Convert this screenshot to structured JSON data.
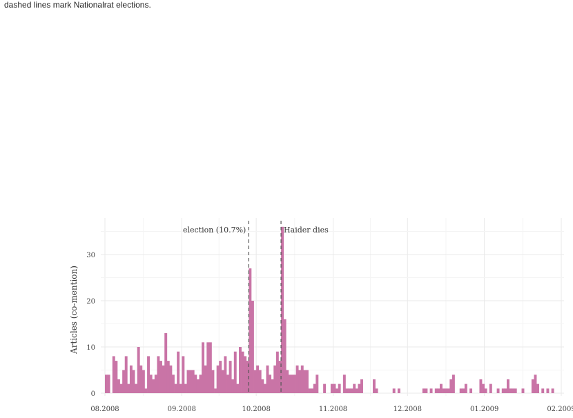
{
  "caption": "dashed lines mark Nationalrat elections.",
  "chart_data": {
    "type": "bar",
    "title": "",
    "xlabel": "",
    "ylabel": "Articles (co-mention)",
    "x_start": "2008-08-01",
    "x_end": "2009-02-01",
    "ylim": [
      0,
      38
    ],
    "grid": true,
    "bar_color": "#c974a6",
    "y_ticks": [
      0,
      10,
      20,
      30
    ],
    "x_ticks": [
      {
        "date": "2008-08-01",
        "label": "08.2008"
      },
      {
        "date": "2008-09-01",
        "label": "09.2008"
      },
      {
        "date": "2008-10-01",
        "label": "10.2008"
      },
      {
        "date": "2008-11-01",
        "label": "11.2008"
      },
      {
        "date": "2008-12-01",
        "label": "12.2008"
      },
      {
        "date": "2009-01-01",
        "label": "01.2009"
      },
      {
        "date": "2009-02-01",
        "label": "02.2009"
      }
    ],
    "annotations": [
      {
        "date": "2008-09-28",
        "text": "election (10.7%)",
        "anchor": "left"
      },
      {
        "date": "2008-10-11",
        "text": "Haider dies",
        "anchor": "right"
      }
    ],
    "values": [
      4,
      4,
      0,
      8,
      7,
      3,
      2,
      5,
      8,
      2,
      6,
      5,
      2,
      10,
      6,
      5,
      1,
      8,
      4,
      3,
      4,
      8,
      7,
      6,
      13,
      7,
      6,
      4,
      2,
      9,
      2,
      8,
      2,
      5,
      5,
      5,
      4,
      3,
      4,
      11,
      6,
      11,
      11,
      5,
      1,
      6,
      7,
      5,
      8,
      4,
      7,
      3,
      9,
      2,
      10,
      9,
      8,
      7,
      27,
      20,
      5,
      6,
      5,
      3,
      2,
      6,
      4,
      3,
      6,
      9,
      7,
      36,
      16,
      5,
      4,
      4,
      4,
      6,
      5,
      6,
      5,
      5,
      1,
      1,
      2,
      4,
      0,
      0,
      2,
      0,
      0,
      2,
      2,
      1,
      2,
      0,
      4,
      1,
      1,
      1,
      2,
      1,
      2,
      3,
      0,
      0,
      0,
      0,
      3,
      1,
      0,
      0,
      0,
      0,
      0,
      0,
      1,
      0,
      1,
      0,
      0,
      0,
      0,
      0,
      0,
      0,
      0,
      0,
      1,
      1,
      0,
      1,
      0,
      1,
      1,
      2,
      1,
      1,
      1,
      3,
      4,
      0,
      0,
      1,
      1,
      2,
      0,
      1,
      0,
      0,
      0,
      3,
      2,
      1,
      0,
      2,
      0,
      0,
      1,
      0,
      1,
      1,
      3,
      1,
      1,
      1,
      0,
      0,
      1,
      0,
      0,
      0,
      3,
      4,
      2,
      0,
      1,
      0,
      1,
      0,
      1,
      0,
      0,
      0,
      0,
      0,
      0,
      0,
      0
    ]
  }
}
